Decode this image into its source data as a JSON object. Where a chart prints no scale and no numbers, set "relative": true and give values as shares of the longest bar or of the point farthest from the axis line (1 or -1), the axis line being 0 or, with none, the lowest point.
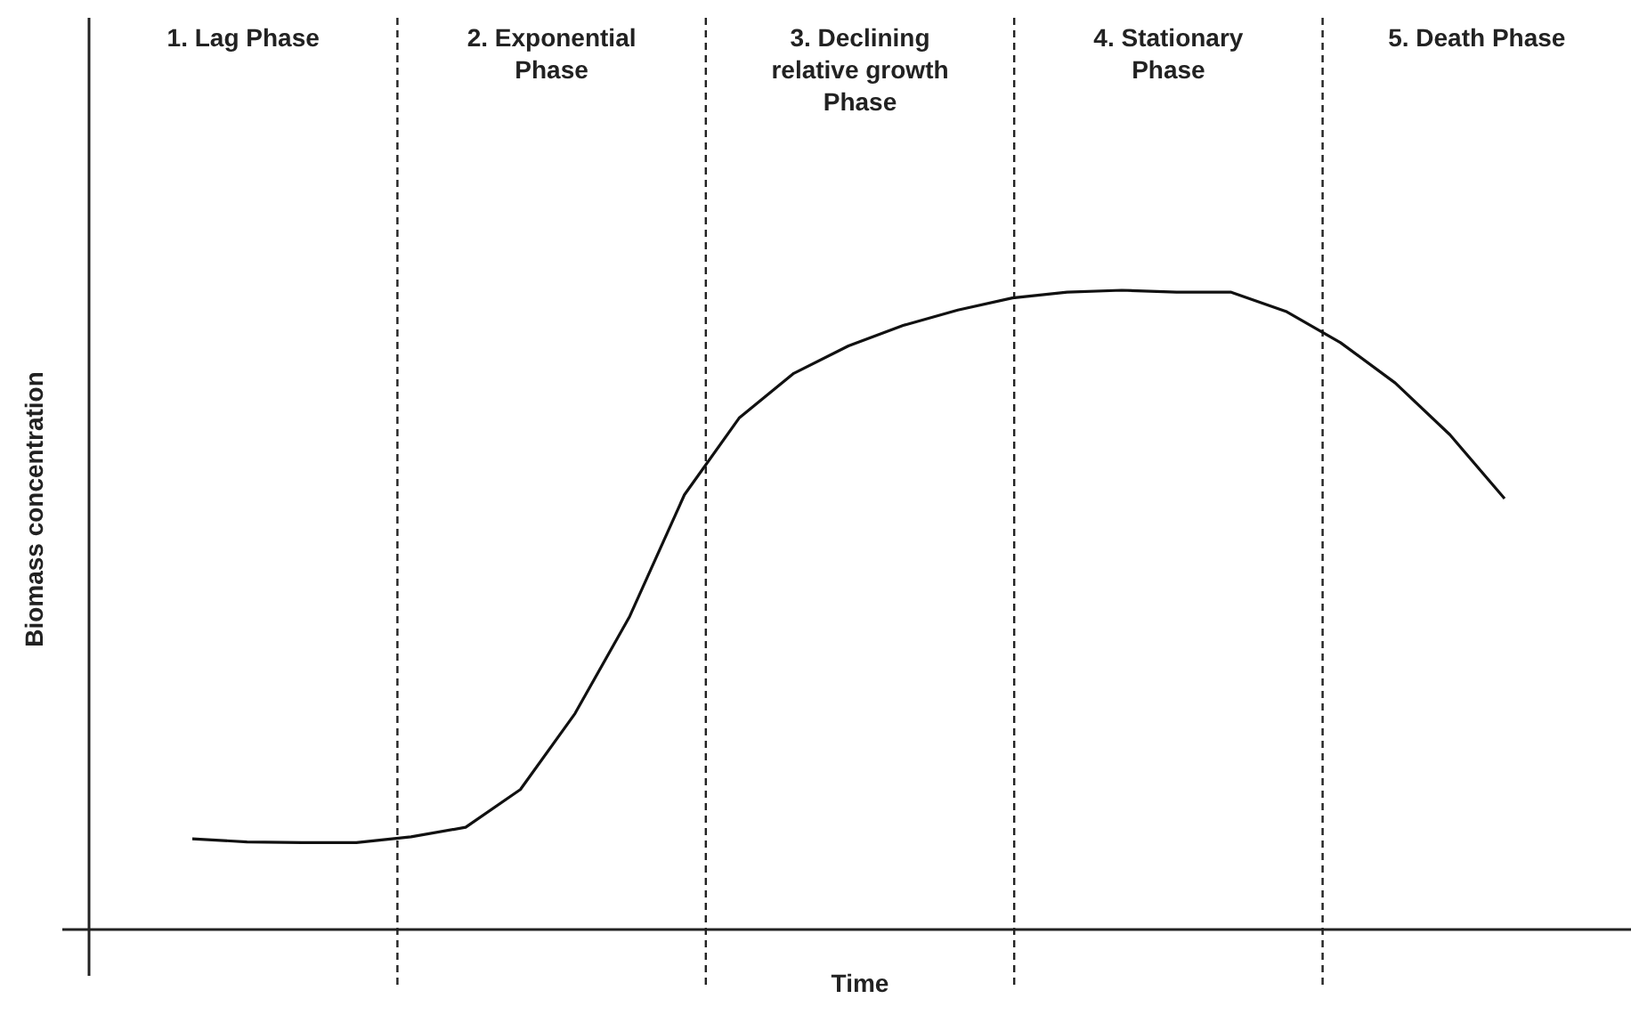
{
  "chart_data": {
    "type": "line",
    "relative": true,
    "xlabel": "Time",
    "ylabel": "Biomass concentration",
    "marker": "none",
    "line_style": "solid",
    "categories": [
      null,
      null,
      null,
      null,
      null,
      null,
      null,
      null,
      null,
      null,
      null,
      null,
      null,
      null,
      null,
      null,
      null,
      null,
      null,
      null,
      null,
      null,
      null,
      null,
      null
    ],
    "series": [
      {
        "color": "#111111",
        "values": [
          0.142,
          0.137,
          0.136,
          0.136,
          0.145,
          0.16,
          0.219,
          0.338,
          0.49,
          0.68,
          0.8,
          0.87,
          0.913,
          0.945,
          0.969,
          0.988,
          0.997,
          1,
          0.997,
          0.997,
          0.967,
          0.918,
          0.855,
          0.774,
          0.674
        ]
      }
    ],
    "annotations": [
      "1. Lag Phase",
      "2. Exponential Phase",
      "3. Declining relative growth Phase",
      "4. Stationary Phase",
      "5. Death Phase"
    ]
  }
}
